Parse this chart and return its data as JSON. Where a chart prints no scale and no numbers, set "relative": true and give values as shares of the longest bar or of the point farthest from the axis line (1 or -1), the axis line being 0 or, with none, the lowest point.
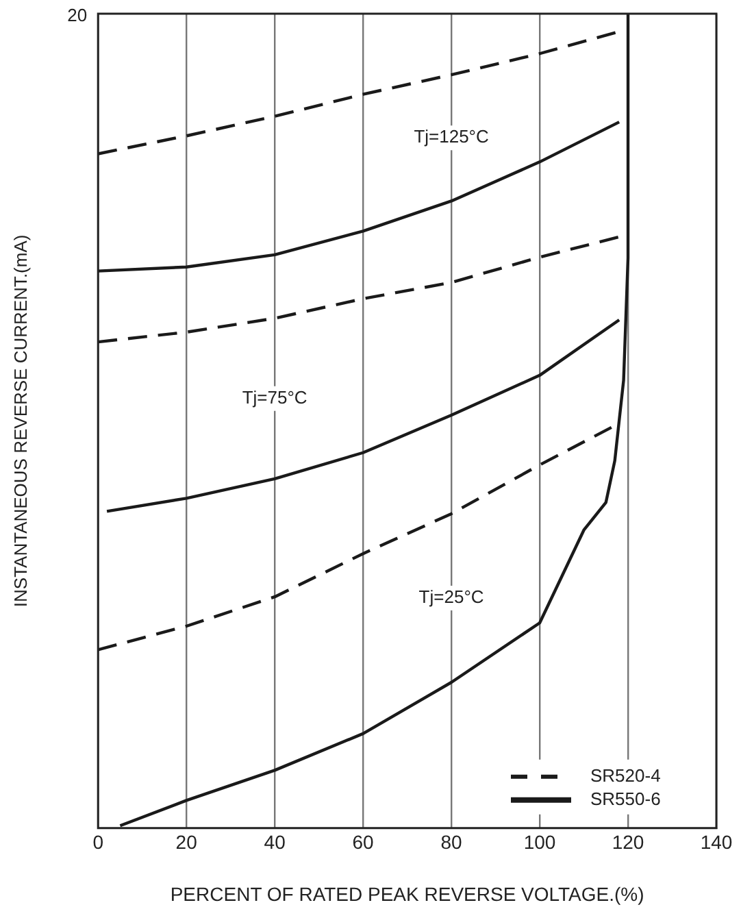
{
  "chart_data": {
    "type": "line",
    "relative": true,
    "xlabel": "PERCENT OF RATED PEAK REVERSE VOLTAGE.(%)",
    "ylabel": "INSTANTANEOUS REVERSE CURRENT.(mA)",
    "xlim": [
      0,
      140
    ],
    "xticks": [
      0,
      20,
      40,
      60,
      80,
      100,
      120,
      140
    ],
    "grid": "x",
    "legend": "bottom right",
    "marker": "none",
    "series": [
      {
        "name": "SR520-4",
        "color": "#1a1a1a",
        "line_style": "dashed",
        "x": [
          0,
          20,
          40,
          60,
          80,
          100,
          118
        ],
        "values": [
          0.828,
          0.85,
          0.874,
          0.901,
          0.925,
          0.951,
          0.978
        ]
      },
      {
        "name": "SR550-6",
        "color": "#1a1a1a",
        "line_style": "solid",
        "x": [
          0,
          20,
          40,
          60,
          80,
          100,
          118
        ],
        "values": [
          0.684,
          0.689,
          0.704,
          0.733,
          0.77,
          0.818,
          0.867
        ]
      },
      {
        "color": "#1a1a1a",
        "line_style": "dashed",
        "x": [
          0,
          20,
          40,
          60,
          80,
          100,
          118
        ],
        "values": [
          0.597,
          0.609,
          0.626,
          0.65,
          0.67,
          0.701,
          0.726
        ]
      },
      {
        "color": "#1a1a1a",
        "line_style": "solid",
        "x": [
          2,
          20,
          40,
          60,
          80,
          100,
          118
        ],
        "values": [
          0.389,
          0.405,
          0.429,
          0.461,
          0.507,
          0.556,
          0.624
        ]
      },
      {
        "color": "#1a1a1a",
        "line_style": "dashed",
        "x": [
          0,
          20,
          40,
          60,
          80,
          100,
          118
        ],
        "values": [
          0.219,
          0.248,
          0.284,
          0.337,
          0.386,
          0.446,
          0.497
        ]
      },
      {
        "color": "#1a1a1a",
        "line_style": "solid",
        "x": [
          5,
          20,
          40,
          60,
          80,
          100,
          110,
          115,
          117,
          119,
          120,
          120
        ],
        "values": [
          0.003,
          0.034,
          0.071,
          0.116,
          0.179,
          0.252,
          0.366,
          0.4,
          0.451,
          0.55,
          0.7,
          1
        ]
      }
    ],
    "annotations": [
      "20",
      "Tj=125°C",
      "Tj=75°C",
      "Tj=25°C"
    ]
  }
}
